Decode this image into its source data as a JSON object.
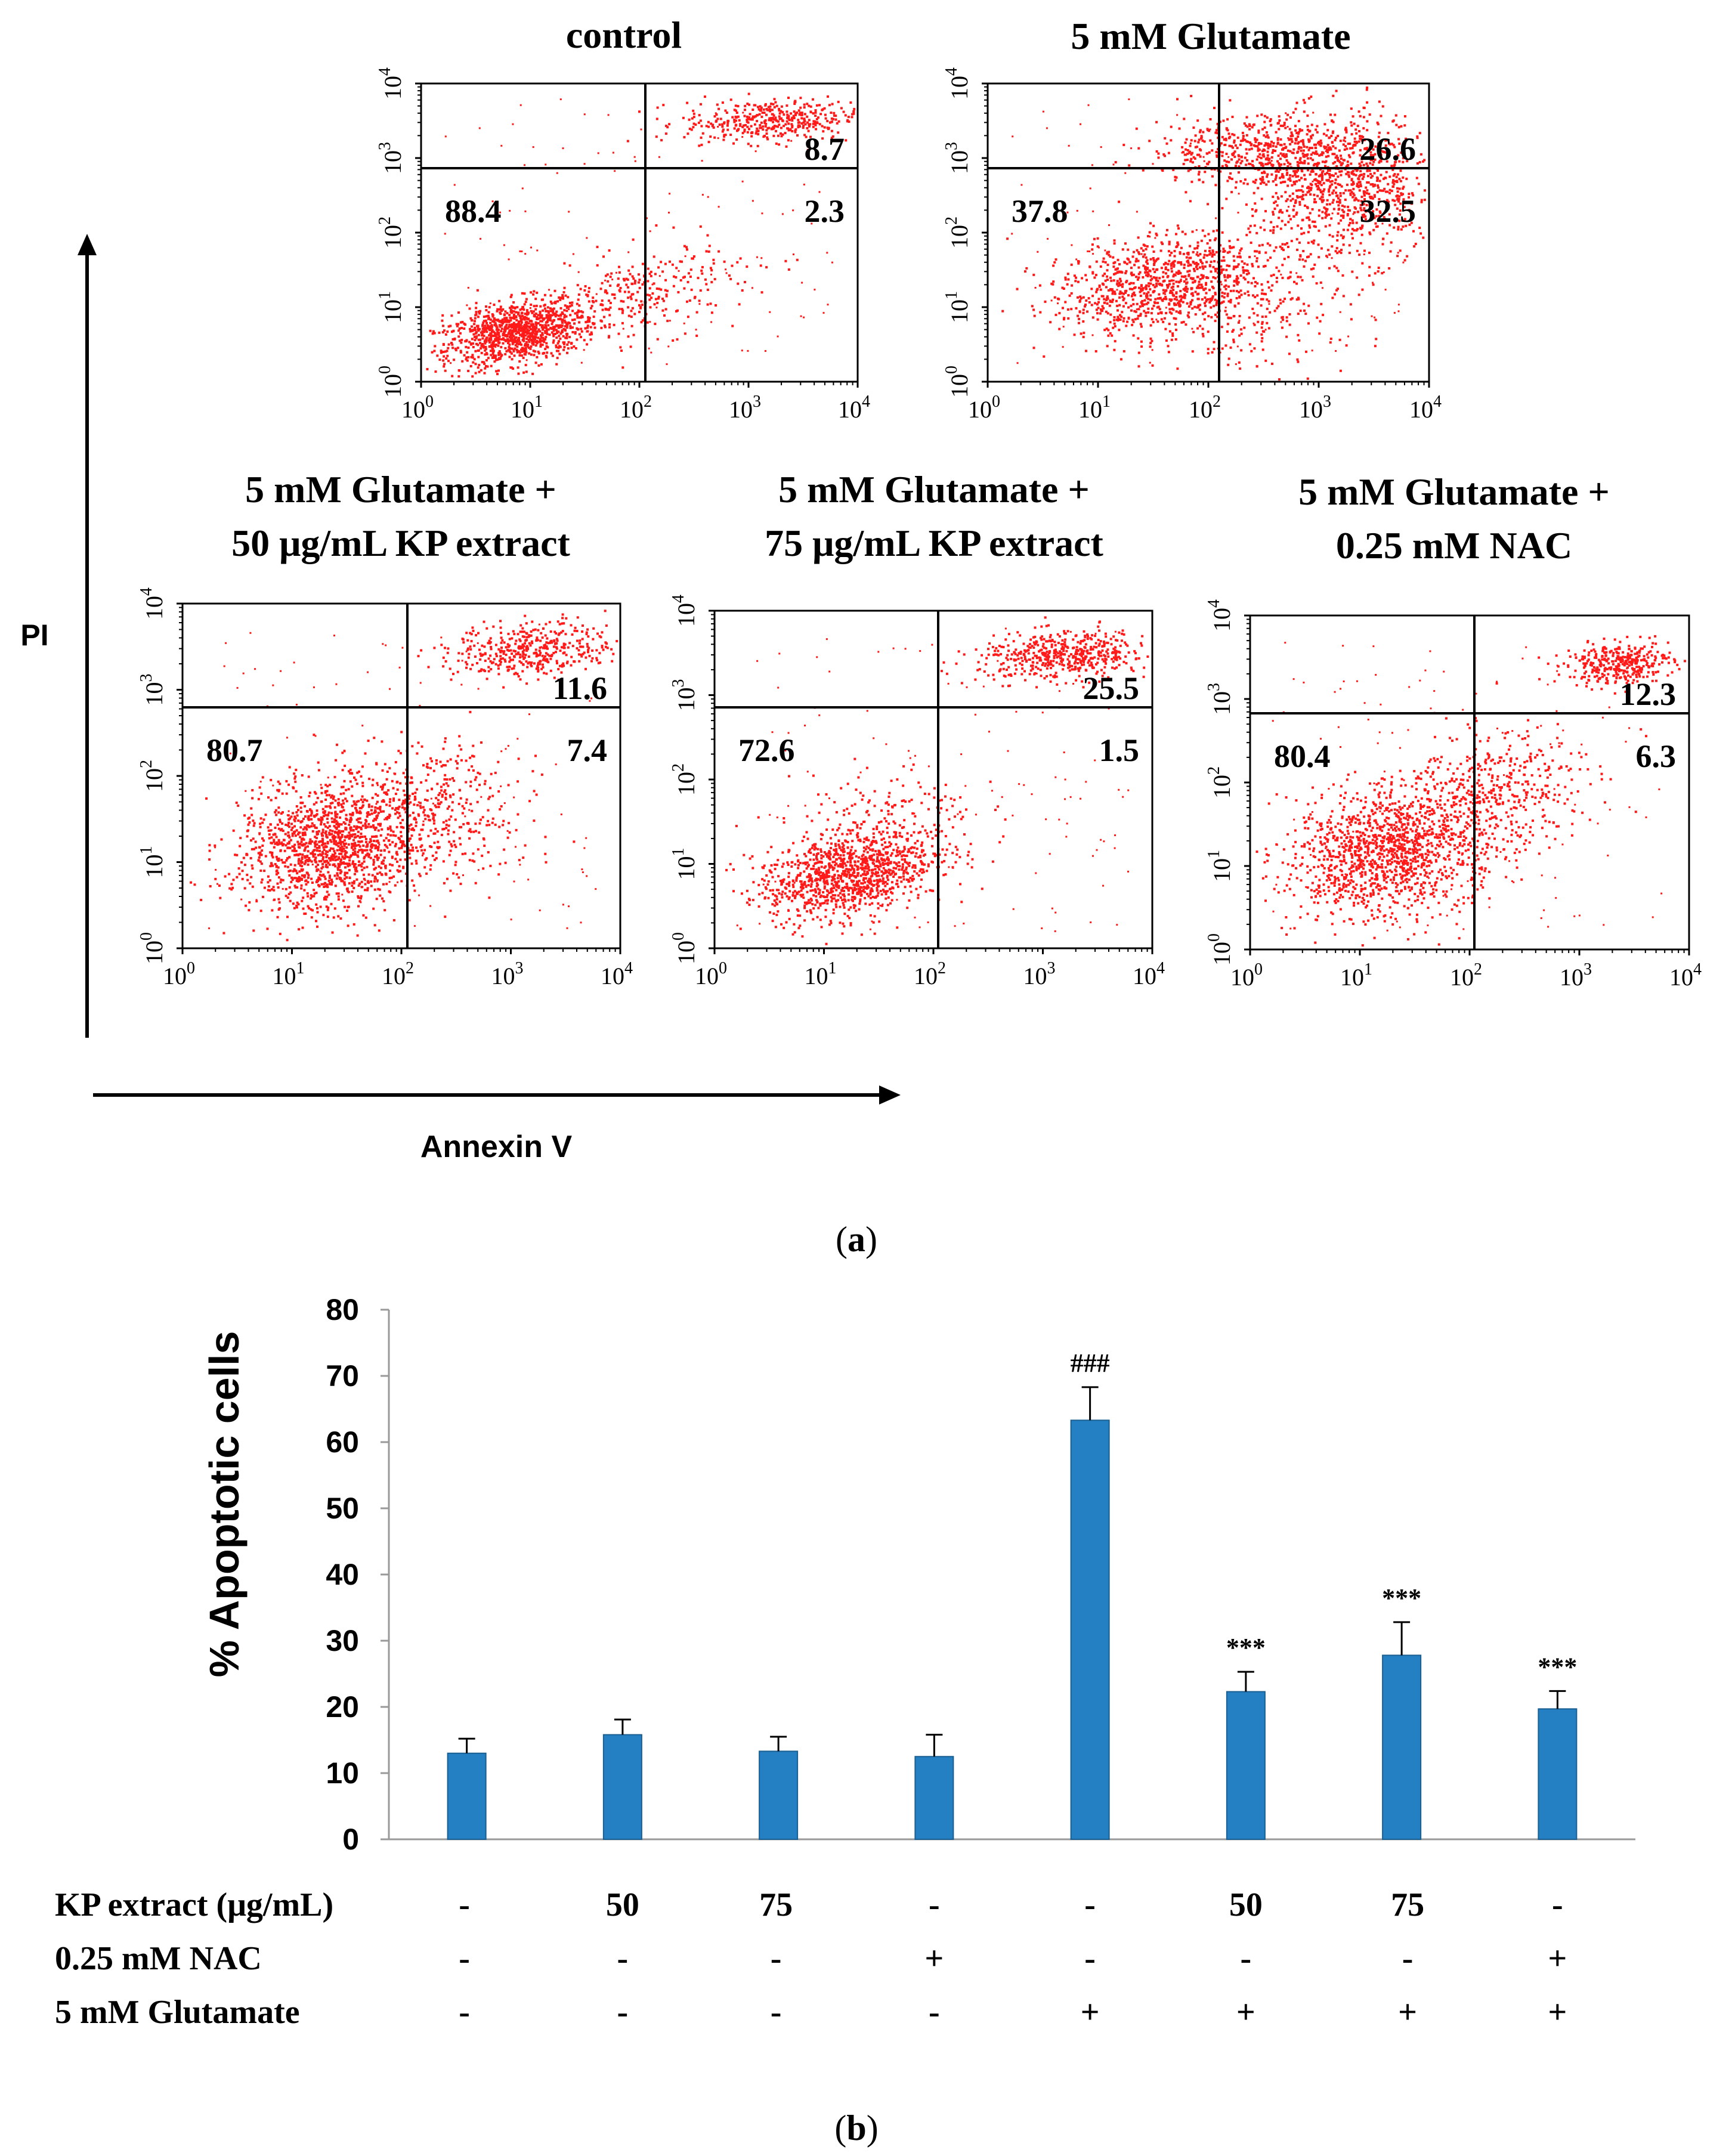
{
  "colors": {
    "dots": "#ff1a1a",
    "bar": "#2480c3",
    "bar_edge": "#1a5f92",
    "axis": "#000000",
    "grid": "#999999"
  },
  "panel_a": {
    "caption": "(a)",
    "caption_letter": "a",
    "y_axis_label": "PI",
    "x_axis_label": "Annexin V",
    "tick_labels": [
      "10",
      "10",
      "10",
      "10",
      "10"
    ],
    "tick_exponents": [
      "0",
      "1",
      "2",
      "3",
      "4"
    ],
    "plots": [
      {
        "title": [
          "control"
        ],
        "quadrants": {
          "LL": "88.4",
          "UR": "8.7",
          "LR": "2.3"
        }
      },
      {
        "title": [
          "5 mM Glutamate"
        ],
        "quadrants": {
          "LL": "37.8",
          "UR": "26.6",
          "LR": "32.5"
        }
      },
      {
        "title": [
          "5 mM Glutamate +",
          "50 μg/mL KP extract"
        ],
        "quadrants": {
          "LL": "80.7",
          "UR": "11.6",
          "LR": "7.4"
        }
      },
      {
        "title": [
          "5 mM Glutamate +",
          "75 μg/mL KP extract"
        ],
        "quadrants": {
          "LL": "72.6",
          "UR": "25.5",
          "LR": "1.5"
        }
      },
      {
        "title": [
          "5 mM Glutamate +",
          "0.25 mM  NAC"
        ],
        "quadrants": {
          "LL": "80.4",
          "UR": "12.3",
          "LR": "6.3"
        }
      }
    ]
  },
  "chart_data": {
    "type": "bar",
    "title": "",
    "ylabel": "% Apoptotic cells",
    "xlabel": "",
    "ylim": [
      0,
      80
    ],
    "yticks": [
      0,
      10,
      20,
      30,
      40,
      50,
      60,
      70,
      80
    ],
    "values": [
      13,
      15.8,
      13.3,
      12.5,
      63.3,
      22.3,
      27.8,
      19.7
    ],
    "errors": [
      2.2,
      2.3,
      2.2,
      3.3,
      5.0,
      3.0,
      5.0,
      2.7
    ],
    "annotations": [
      "",
      "",
      "",
      "",
      "###",
      "***",
      "***",
      "***"
    ],
    "conditions": [
      {
        "label": "KP extract (μg/mL)",
        "values": [
          "-",
          "50",
          "75",
          "-",
          "-",
          "50",
          "75",
          "-"
        ]
      },
      {
        "label": "0.25 mM NAC",
        "values": [
          "-",
          "-",
          "-",
          "+",
          "-",
          "-",
          "-",
          "+"
        ]
      },
      {
        "label": "5 mM Glutamate",
        "values": [
          "-",
          "-",
          "-",
          "-",
          "+",
          "+",
          "+",
          "+"
        ]
      }
    ],
    "caption": "(b)",
    "caption_letter": "b"
  }
}
